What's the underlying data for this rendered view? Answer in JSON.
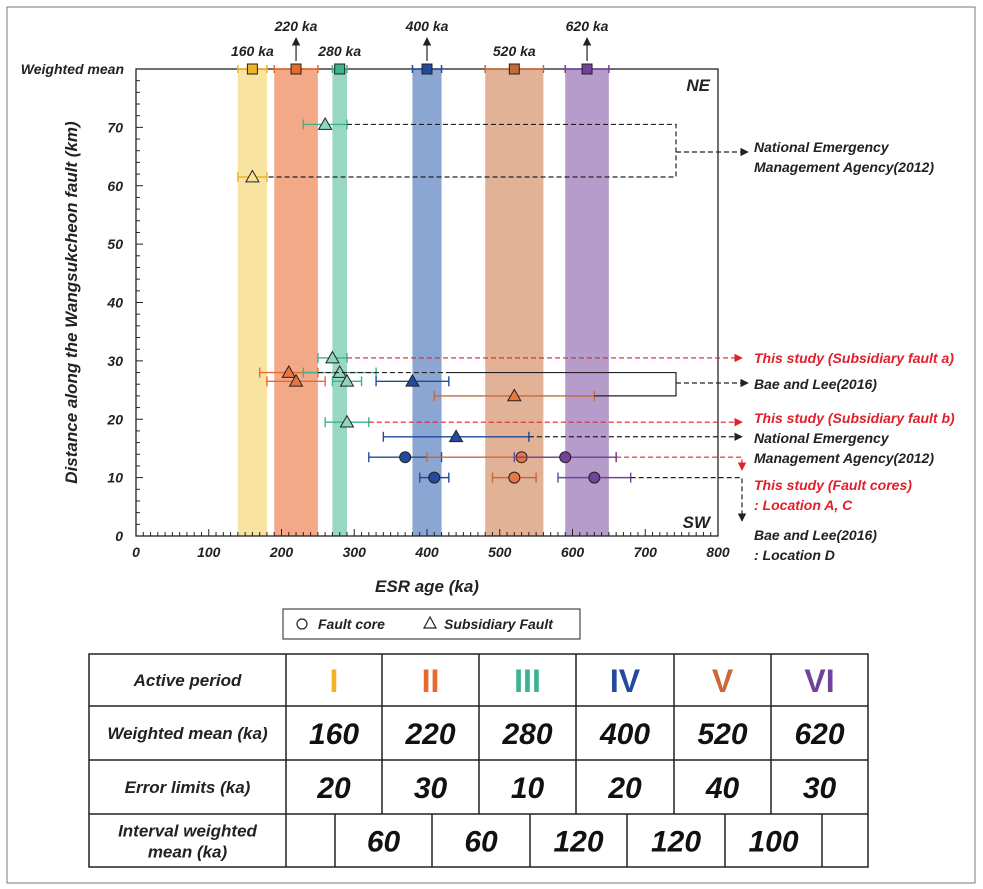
{
  "chart_data": {
    "type": "scatter",
    "ylabel": "Distance along the Wangsukcheon fault (km)",
    "xlabel": "ESR age (ka)",
    "xlim": [
      0,
      800
    ],
    "ylim": [
      0,
      80
    ],
    "xticks": [
      "0",
      "100",
      "200",
      "300",
      "400",
      "500",
      "600",
      "700",
      "800"
    ],
    "yticks": [
      "0",
      "10",
      "20",
      "30",
      "40",
      "50",
      "60",
      "70"
    ],
    "weighted_mean_label": "Weighted mean",
    "corner_top": "NE",
    "corner_bottom": "SW",
    "periods": [
      {
        "label": "160 ka",
        "mean": 160,
        "err": 20,
        "band_color": "#f9e3a0",
        "color": "#f0b323",
        "arrow": false
      },
      {
        "label": "220 ka",
        "mean": 220,
        "err": 30,
        "band_color": "#f3a888",
        "color": "#e66a2c",
        "arrow": true
      },
      {
        "label": "280 ka",
        "mean": 280,
        "err": 10,
        "band_color": "#98d7c2",
        "color": "#3cb28f",
        "arrow": false
      },
      {
        "label": "400 ka",
        "mean": 400,
        "err": 20,
        "band_color": "#8ba6d3",
        "color": "#234a9c",
        "arrow": true
      },
      {
        "label": "520 ka",
        "mean": 520,
        "err": 40,
        "band_color": "#e2b297",
        "color": "#c8693a",
        "arrow": false
      },
      {
        "label": "620 ka",
        "mean": 620,
        "err": 30,
        "band_color": "#b69ccb",
        "color": "#71439a",
        "arrow": true
      }
    ],
    "points": [
      {
        "age": 260,
        "err": 30,
        "dist": 70.5,
        "shape": "triangle",
        "color": "#3cb28f",
        "fill": "#8ed7bd"
      },
      {
        "age": 160,
        "err": 20,
        "dist": 61.5,
        "shape": "triangle",
        "color": "#f0b323",
        "fill": "#f9e3a0"
      },
      {
        "age": 270,
        "err": 20,
        "dist": 30.5,
        "shape": "triangle",
        "color": "#3cb28f",
        "fill": "#8ed7bd"
      },
      {
        "age": 210,
        "err": 40,
        "dist": 28,
        "shape": "triangle",
        "color": "#e66a2c",
        "fill": "#e9763f"
      },
      {
        "age": 280,
        "err": 50,
        "dist": 28,
        "shape": "triangle",
        "color": "#3cb28f",
        "fill": "#8ed7bd"
      },
      {
        "age": 220,
        "err": 40,
        "dist": 26.5,
        "shape": "triangle",
        "color": "#e66a2c",
        "fill": "#e9763f"
      },
      {
        "age": 290,
        "err": 20,
        "dist": 26.5,
        "shape": "triangle",
        "color": "#3cb28f",
        "fill": "#8ed7bd"
      },
      {
        "age": 380,
        "err": 50,
        "dist": 26.5,
        "shape": "triangle",
        "color": "#234a9c",
        "fill": "#234a9c"
      },
      {
        "age": 520,
        "err": 110,
        "dist": 24,
        "shape": "triangle",
        "color": "#c8693a",
        "fill": "#e9763f"
      },
      {
        "age": 290,
        "err": 30,
        "dist": 19.5,
        "shape": "triangle",
        "color": "#3cb28f",
        "fill": "#8ed7bd"
      },
      {
        "age": 440,
        "err": 100,
        "dist": 17,
        "shape": "triangle",
        "color": "#234a9c",
        "fill": "#234a9c"
      },
      {
        "age": 370,
        "err": 50,
        "dist": 13.5,
        "shape": "circle",
        "color": "#234a9c",
        "fill": "#234a9c"
      },
      {
        "age": 530,
        "err": 130,
        "dist": 13.5,
        "shape": "circle",
        "color": "#c8693a",
        "fill": "#e9763f"
      },
      {
        "age": 590,
        "err": 70,
        "dist": 13.5,
        "shape": "circle",
        "color": "#71439a",
        "fill": "#71439a"
      },
      {
        "age": 410,
        "err": 20,
        "dist": 10,
        "shape": "circle",
        "color": "#234a9c",
        "fill": "#234a9c"
      },
      {
        "age": 520,
        "err": 30,
        "dist": 10,
        "shape": "circle",
        "color": "#c8693a",
        "fill": "#e9763f"
      },
      {
        "age": 630,
        "err": 50,
        "dist": 10,
        "shape": "circle",
        "color": "#71439a",
        "fill": "#71439a"
      }
    ],
    "annotations": [
      {
        "lines": [
          "National Emergency",
          "Management Agency(2012)"
        ],
        "color": "#222222"
      },
      {
        "lines": [
          "This study (Subsidiary fault a)"
        ],
        "color": "#e0202a"
      },
      {
        "lines": [
          "Bae and Lee(2016)"
        ],
        "color": "#222222"
      },
      {
        "lines": [
          "This study (Subsidiary fault b)"
        ],
        "color": "#e0202a"
      },
      {
        "lines": [
          "National Emergency",
          "Management Agency(2012)"
        ],
        "color": "#222222"
      },
      {
        "lines": [
          "This study (Fault cores)",
          ": Location A, C"
        ],
        "color": "#e0202a"
      },
      {
        "lines": [
          "Bae and Lee(2016)",
          ": Location D"
        ],
        "color": "#222222"
      }
    ],
    "legend": [
      {
        "label": "Fault core",
        "shape": "circle"
      },
      {
        "label": "Subsidiary Fault",
        "shape": "triangle"
      }
    ]
  },
  "table": {
    "rows": [
      {
        "label": "Active period",
        "cells": [
          "I",
          "II",
          "III",
          "IV",
          "V",
          "VI"
        ]
      },
      {
        "label": "Weighted mean (ka)",
        "cells": [
          "160",
          "220",
          "280",
          "400",
          "520",
          "620"
        ]
      },
      {
        "label": "Error limits (ka)",
        "cells": [
          "20",
          "30",
          "10",
          "20",
          "40",
          "30"
        ]
      }
    ],
    "interval_label_1": "Interval weighted",
    "interval_label_2": "mean (ka)",
    "intervals": [
      "60",
      "60",
      "120",
      "120",
      "100"
    ],
    "period_colors": [
      "#f0b323",
      "#e66a2c",
      "#3cb28f",
      "#234a9c",
      "#c8693a",
      "#71439a"
    ]
  }
}
